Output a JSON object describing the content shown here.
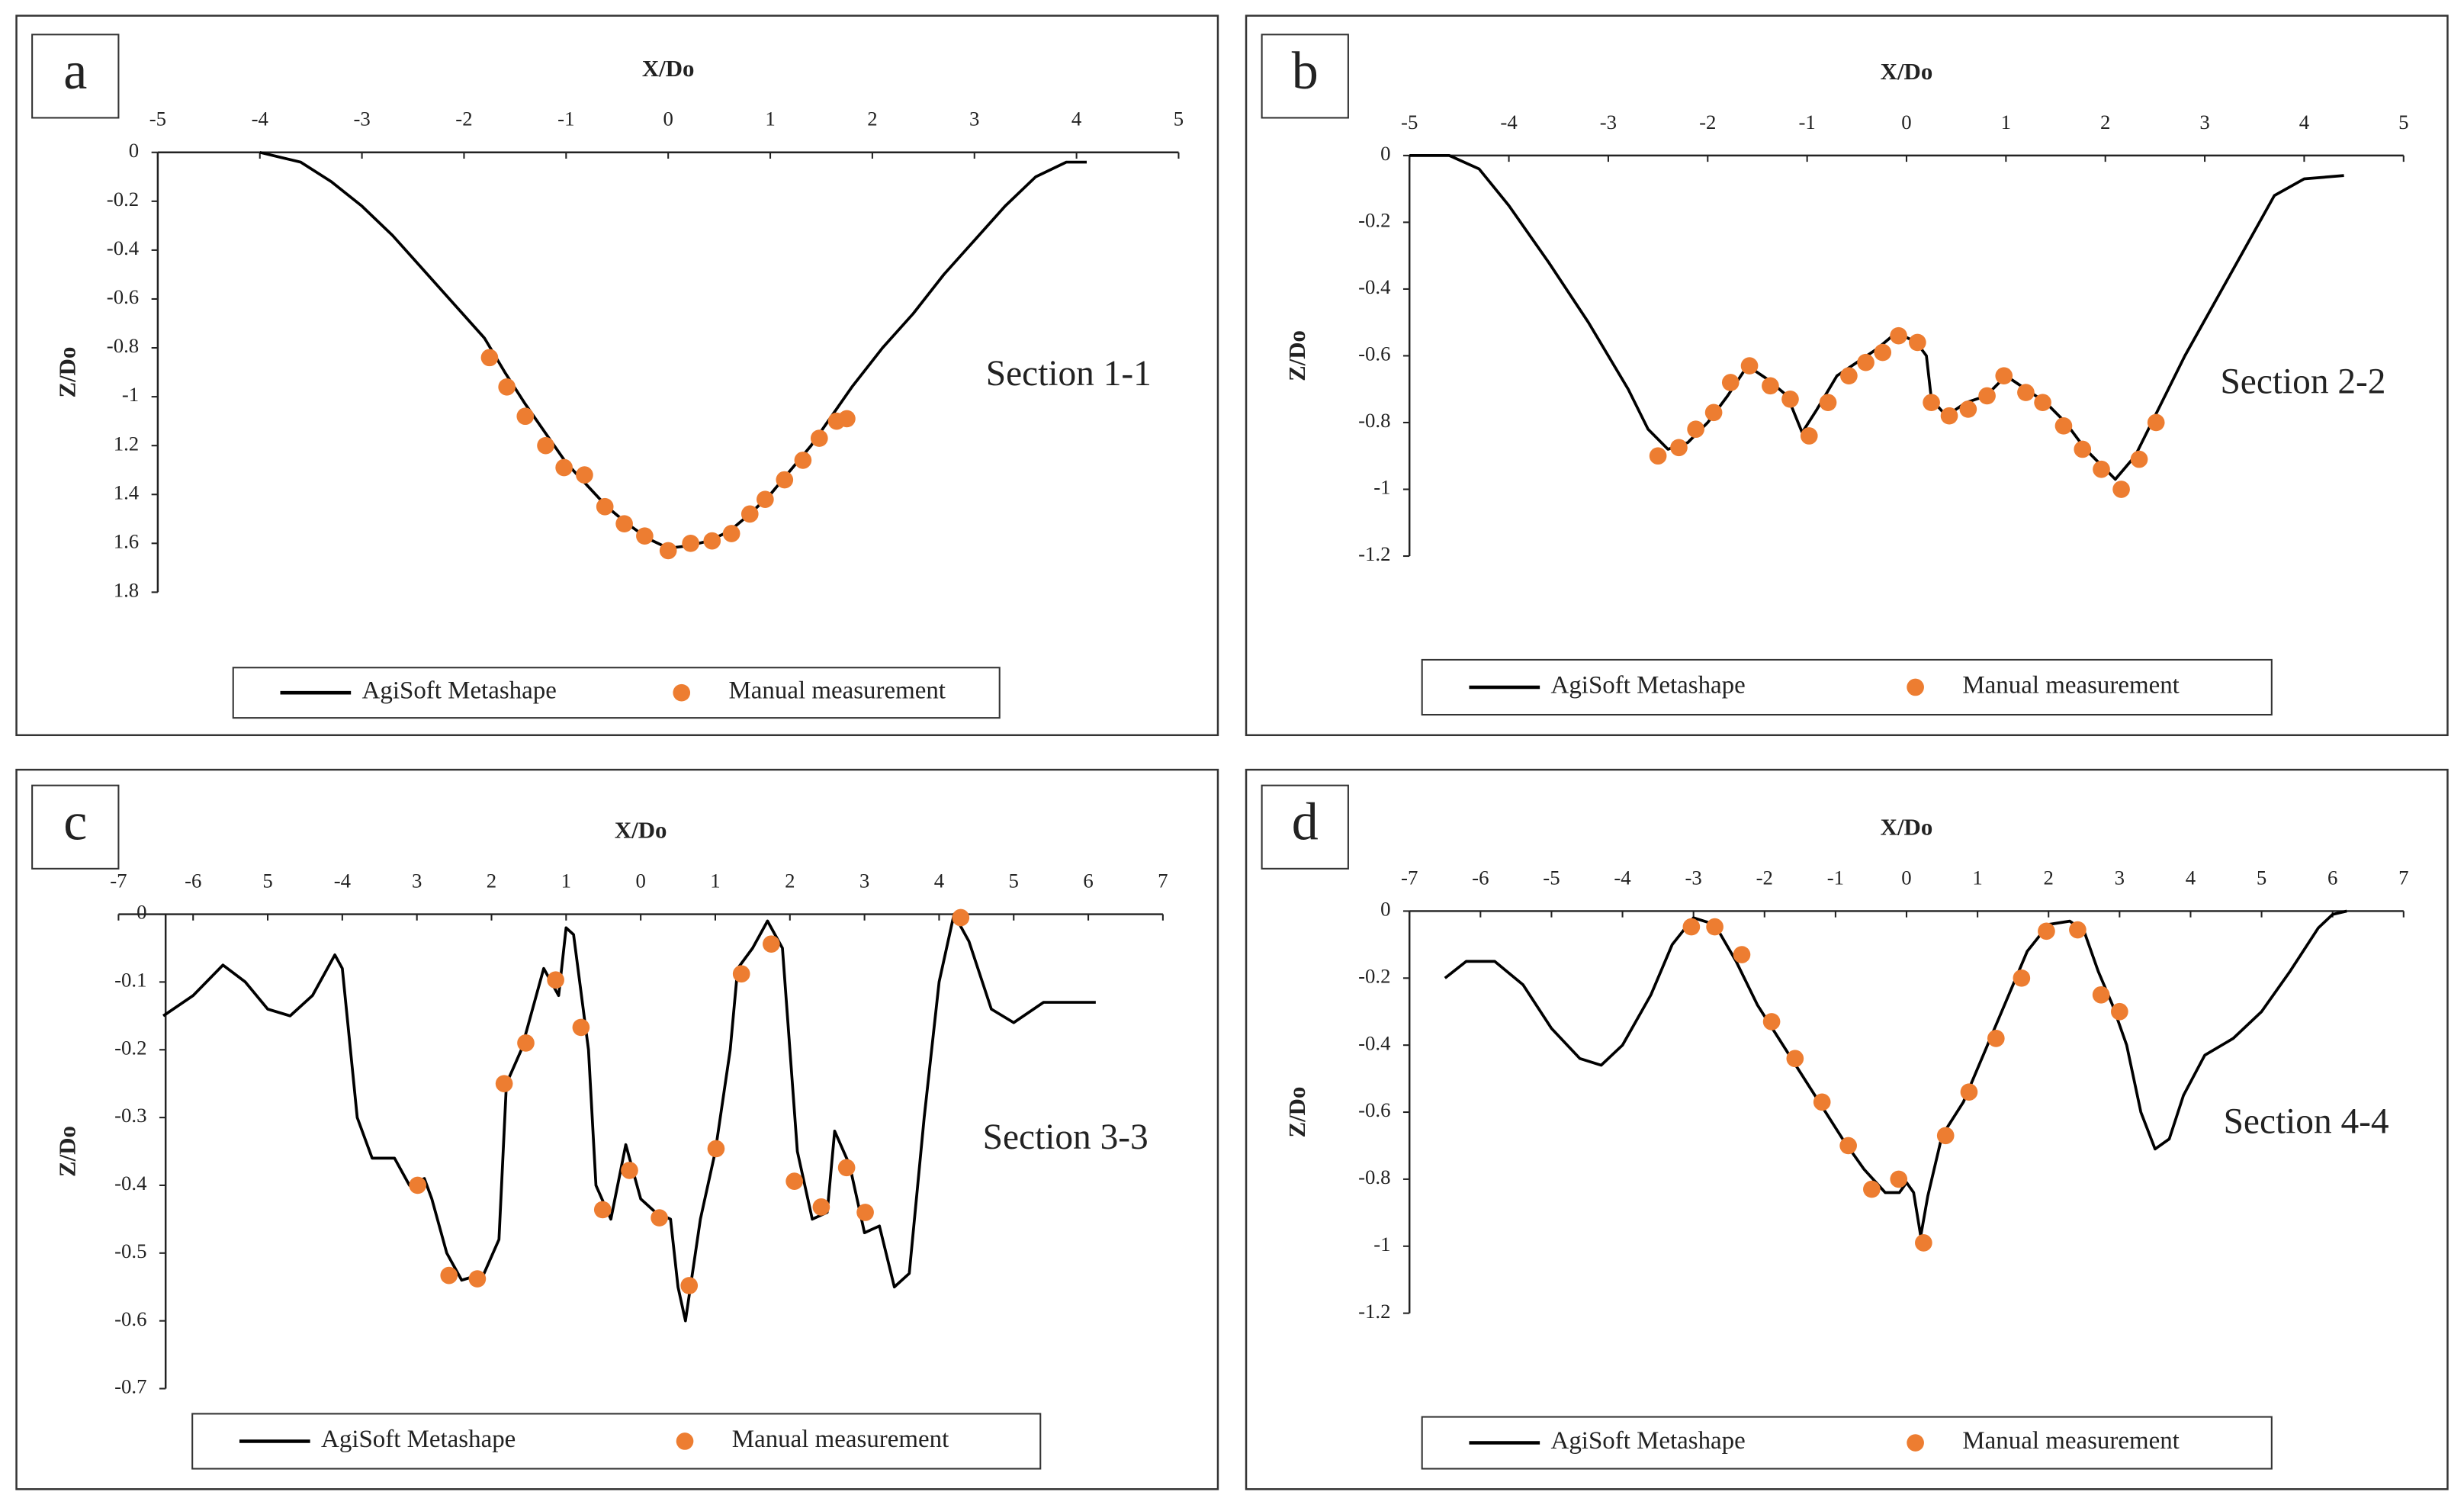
{
  "chart_data": [
    {
      "type": "line",
      "letter": "a",
      "xlabel": "X/Do",
      "ylabel": "Z/Do",
      "annotation": "Section 1-1",
      "xlim": [
        -5,
        5
      ],
      "ylim": [
        -1.8,
        0
      ],
      "xticks": [
        -5,
        -4,
        -3,
        -2,
        -1,
        0,
        1,
        2,
        3,
        4,
        5
      ],
      "yticks": [
        0,
        -0.2,
        -0.4,
        -0.6,
        -0.8,
        -1,
        {
          "value": -1.2,
          "label": "1.2"
        },
        {
          "value": -1.4,
          "label": "1.4"
        },
        {
          "value": -1.6,
          "label": "1.6"
        },
        {
          "value": -1.8,
          "label": "1.8"
        }
      ],
      "series": [
        {
          "name": "AgiSoft Metashape",
          "color": "#000000",
          "type": "line",
          "x": [
            -4,
            -3.8,
            -3.6,
            -3.3,
            -3,
            -2.7,
            -2.4,
            -2.1,
            -1.8,
            -1.6,
            -1.4,
            -1.2,
            -1,
            -0.8,
            -0.6,
            -0.4,
            -0.2,
            0,
            0.2,
            0.4,
            0.6,
            0.8,
            1,
            1.2,
            1.4,
            1.6,
            1.8,
            2.1,
            2.4,
            2.7,
            3,
            3.3,
            3.6,
            3.9,
            4.1
          ],
          "values": [
            0,
            -0.02,
            -0.04,
            -0.12,
            -0.22,
            -0.34,
            -0.48,
            -0.62,
            -0.76,
            -0.9,
            -1.03,
            -1.15,
            -1.27,
            -1.36,
            -1.45,
            -1.52,
            -1.58,
            -1.62,
            -1.61,
            -1.59,
            -1.55,
            -1.48,
            -1.4,
            -1.3,
            -1.2,
            -1.08,
            -0.96,
            -0.8,
            -0.66,
            -0.5,
            -0.36,
            -0.22,
            -0.1,
            -0.04,
            -0.04
          ]
        },
        {
          "name": "Manual measurement",
          "color": "#ed7d31",
          "type": "scatter",
          "x": [
            -1.75,
            -1.58,
            -1.4,
            -1.2,
            -1.02,
            -0.82,
            -0.62,
            -0.43,
            -0.23,
            0,
            0.22,
            0.43,
            0.62,
            0.8,
            0.95,
            1.14,
            1.32,
            1.48,
            1.65,
            1.75
          ],
          "values": [
            -0.84,
            -0.96,
            -1.08,
            -1.2,
            -1.29,
            -1.32,
            -1.45,
            -1.52,
            -1.57,
            -1.63,
            -1.6,
            -1.59,
            -1.56,
            -1.48,
            -1.42,
            -1.34,
            -1.26,
            -1.17,
            -1.1,
            -1.09
          ]
        }
      ]
    },
    {
      "type": "line",
      "letter": "b",
      "xlabel": "X/Do",
      "ylabel": "Z/Do",
      "annotation": "Section 2-2",
      "xlim": [
        -5,
        5
      ],
      "ylim": [
        -1.2,
        0
      ],
      "xticks": [
        -5,
        -4,
        -3,
        -2,
        -1,
        0,
        1,
        2,
        3,
        4,
        5
      ],
      "yticks": [
        0,
        -0.2,
        -0.4,
        -0.6,
        -0.8,
        -1,
        -1.2
      ],
      "series": [
        {
          "name": "AgiSoft Metashape",
          "color": "#000000",
          "type": "line",
          "x": [
            -5,
            -4.6,
            -4.3,
            -4,
            -3.6,
            -3.2,
            -2.8,
            -2.6,
            -2.4,
            -2.2,
            -2,
            -1.8,
            -1.6,
            -1.4,
            -1.2,
            -1.05,
            -0.9,
            -0.7,
            -0.5,
            -0.3,
            -0.1,
            0.1,
            0.2,
            0.25,
            0.4,
            0.6,
            0.8,
            1,
            1.2,
            1.4,
            1.6,
            1.8,
            2,
            2.1,
            2.3,
            2.5,
            2.8,
            3.1,
            3.4,
            3.7,
            4,
            4.4
          ],
          "values": [
            0,
            0,
            -0.04,
            -0.15,
            -0.32,
            -0.5,
            -0.7,
            -0.82,
            -0.88,
            -0.86,
            -0.8,
            -0.72,
            -0.63,
            -0.67,
            -0.72,
            -0.83,
            -0.76,
            -0.66,
            -0.62,
            -0.58,
            -0.53,
            -0.56,
            -0.6,
            -0.73,
            -0.78,
            -0.74,
            -0.72,
            -0.66,
            -0.7,
            -0.74,
            -0.8,
            -0.88,
            -0.94,
            -0.97,
            -0.9,
            -0.78,
            -0.6,
            -0.44,
            -0.28,
            -0.12,
            -0.07,
            -0.06
          ]
        },
        {
          "name": "Manual measurement",
          "color": "#ed7d31",
          "type": "scatter",
          "x": [
            -2.5,
            -2.29,
            -2.12,
            -1.94,
            -1.77,
            -1.58,
            -1.37,
            -1.17,
            -0.98,
            -0.79,
            -0.58,
            -0.41,
            -0.24,
            -0.08,
            0.11,
            0.25,
            0.43,
            0.62,
            0.81,
            0.98,
            1.2,
            1.37,
            1.58,
            1.77,
            1.96,
            2.16,
            2.34,
            2.51
          ],
          "values": [
            -0.9,
            -0.875,
            -0.82,
            -0.77,
            -0.68,
            -0.63,
            -0.69,
            -0.73,
            -0.84,
            -0.74,
            -0.66,
            -0.62,
            -0.59,
            -0.54,
            -0.56,
            -0.74,
            -0.78,
            -0.76,
            -0.72,
            -0.66,
            -0.71,
            -0.74,
            -0.81,
            -0.88,
            -0.94,
            -1.0,
            -0.91,
            -0.8
          ]
        }
      ]
    },
    {
      "type": "line",
      "letter": "c",
      "xlabel": "X/Do",
      "ylabel": "Z/Do",
      "annotation": "Section 3-3",
      "xlim": [
        -7,
        7
      ],
      "ylim": [
        -0.7,
        0
      ],
      "xticks": [
        -7,
        -6,
        {
          "value": -5,
          "label": "5"
        },
        -4,
        {
          "value": -3,
          "label": "3"
        },
        {
          "value": -2,
          "label": "2"
        },
        {
          "value": -1,
          "label": "1"
        },
        0,
        1,
        2,
        3,
        4,
        5,
        6,
        7
      ],
      "yticks": [
        0,
        -0.1,
        -0.2,
        -0.3,
        -0.4,
        -0.5,
        -0.6,
        -0.7
      ],
      "series": [
        {
          "name": "AgiSoft Metashape",
          "color": "#000000",
          "type": "line",
          "x": [
            -6.4,
            -6,
            -5.6,
            -5.3,
            -5,
            -4.7,
            -4.4,
            -4.1,
            -4,
            -3.8,
            -3.6,
            -3.3,
            -3.1,
            -2.9,
            -2.8,
            -2.6,
            -2.4,
            -2.1,
            -1.9,
            -1.8,
            -1.6,
            -1.3,
            -1.1,
            -1,
            -0.9,
            -0.7,
            -0.6,
            -0.4,
            -0.2,
            0,
            0.2,
            0.4,
            0.5,
            0.6,
            0.8,
            1,
            1.2,
            1.3,
            1.5,
            1.7,
            1.9,
            2.1,
            2.3,
            2.5,
            2.6,
            2.8,
            3,
            3.2,
            3.4,
            3.6,
            3.8,
            4,
            4.2,
            4.4,
            4.7,
            5,
            5.4,
            5.8,
            6.1
          ],
          "values": [
            -0.15,
            -0.12,
            -0.075,
            -0.1,
            -0.14,
            -0.15,
            -0.12,
            -0.06,
            -0.08,
            -0.3,
            -0.36,
            -0.36,
            -0.4,
            -0.39,
            -0.42,
            -0.5,
            -0.54,
            -0.53,
            -0.48,
            -0.25,
            -0.2,
            -0.08,
            -0.12,
            -0.02,
            -0.03,
            -0.2,
            -0.4,
            -0.45,
            -0.34,
            -0.42,
            -0.44,
            -0.45,
            -0.55,
            -0.6,
            -0.45,
            -0.35,
            -0.2,
            -0.08,
            -0.05,
            -0.01,
            -0.05,
            -0.35,
            -0.45,
            -0.44,
            -0.32,
            -0.37,
            -0.47,
            -0.46,
            -0.55,
            -0.53,
            -0.3,
            -0.1,
            0,
            -0.04,
            -0.14,
            -0.16,
            -0.13,
            -0.13,
            -0.13
          ]
        },
        {
          "name": "Manual measurement",
          "color": "#ed7d31",
          "type": "scatter",
          "x": [
            -2.99,
            -2.57,
            -2.19,
            -1.83,
            -1.54,
            -1.14,
            -0.8,
            -0.51,
            -0.15,
            0.25,
            0.65,
            1.01,
            1.35,
            1.75,
            2.06,
            2.42,
            2.76,
            3.01,
            4.29
          ],
          "values": [
            -0.4,
            -0.533,
            -0.538,
            -0.25,
            -0.19,
            -0.097,
            -0.167,
            -0.436,
            -0.378,
            -0.448,
            -0.548,
            -0.346,
            -0.088,
            -0.044,
            -0.394,
            -0.432,
            -0.374,
            -0.44,
            -0.005
          ]
        }
      ]
    },
    {
      "type": "line",
      "letter": "d",
      "xlabel": "X/Do",
      "ylabel": "Z/Do",
      "annotation": "Section 4-4",
      "xlim": [
        -7,
        7
      ],
      "ylim": [
        -1.2,
        0
      ],
      "xticks": [
        -7,
        -6,
        -5,
        -4,
        -3,
        -2,
        -1,
        0,
        1,
        2,
        3,
        4,
        5,
        6,
        7
      ],
      "yticks": [
        0,
        -0.2,
        -0.4,
        -0.6,
        -0.8,
        -1,
        -1.2
      ],
      "series": [
        {
          "name": "AgiSoft Metashape",
          "color": "#000000",
          "type": "line",
          "x": [
            -6.5,
            -6.2,
            -5.8,
            -5.4,
            -5,
            -4.6,
            -4.3,
            -4,
            -3.6,
            -3.3,
            -3,
            -2.7,
            -2.4,
            -2.1,
            -1.8,
            -1.5,
            -1.2,
            -0.9,
            -0.6,
            -0.3,
            -0.1,
            0,
            0.1,
            0.2,
            0.3,
            0.5,
            0.8,
            1.1,
            1.4,
            1.7,
            2,
            2.3,
            2.5,
            2.7,
            2.9,
            3.1,
            3.3,
            3.5,
            3.7,
            3.9,
            4.2,
            4.6,
            5,
            5.4,
            5.8,
            6,
            6.2
          ],
          "values": [
            -0.2,
            -0.15,
            -0.15,
            -0.22,
            -0.35,
            -0.44,
            -0.46,
            -0.4,
            -0.25,
            -0.1,
            -0.02,
            -0.04,
            -0.15,
            -0.28,
            -0.38,
            -0.48,
            -0.58,
            -0.68,
            -0.77,
            -0.84,
            -0.84,
            -0.81,
            -0.84,
            -0.97,
            -0.85,
            -0.67,
            -0.57,
            -0.42,
            -0.27,
            -0.12,
            -0.04,
            -0.03,
            -0.06,
            -0.18,
            -0.28,
            -0.4,
            -0.6,
            -0.71,
            -0.68,
            -0.55,
            -0.43,
            -0.38,
            -0.3,
            -0.18,
            -0.05,
            -0.01,
            0
          ]
        },
        {
          "name": "Manual measurement",
          "color": "#ed7d31",
          "type": "scatter",
          "x": [
            -3.03,
            -2.7,
            -2.32,
            -1.9,
            -1.57,
            -1.19,
            -0.82,
            -0.49,
            -0.11,
            0.24,
            0.55,
            0.88,
            1.26,
            1.62,
            1.97,
            2.41,
            2.74,
            3.0
          ],
          "values": [
            -0.047,
            -0.047,
            -0.13,
            -0.33,
            -0.44,
            -0.57,
            -0.7,
            -0.83,
            -0.8,
            -0.99,
            -0.67,
            -0.54,
            -0.38,
            -0.2,
            -0.06,
            -0.056,
            -0.25,
            -0.3
          ]
        }
      ]
    }
  ]
}
